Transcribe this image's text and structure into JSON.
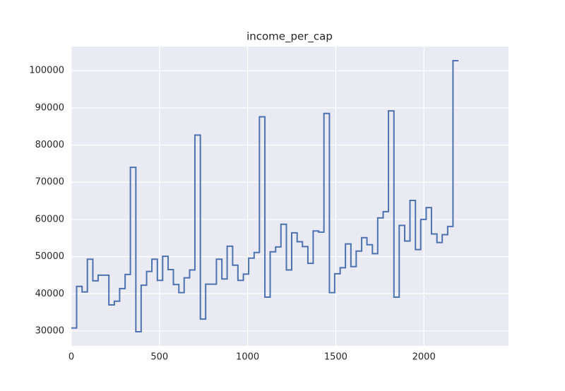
{
  "chart_data": {
    "type": "step",
    "step": "post",
    "title": "income_per_cap",
    "x": [
      0,
      30,
      61,
      91,
      122,
      152,
      183,
      213,
      244,
      274,
      305,
      335,
      366,
      396,
      427,
      457,
      488,
      518,
      549,
      579,
      610,
      640,
      671,
      701,
      732,
      762,
      793,
      823,
      854,
      884,
      915,
      945,
      976,
      1006,
      1037,
      1067,
      1098,
      1128,
      1159,
      1189,
      1220,
      1250,
      1281,
      1311,
      1342,
      1372,
      1403,
      1433,
      1464,
      1494,
      1525,
      1555,
      1586,
      1616,
      1647,
      1677,
      1708,
      1738,
      1769,
      1799,
      1830,
      1860,
      1891,
      1921,
      1952,
      1982,
      2013,
      2043,
      2074,
      2104,
      2135,
      2165,
      2196
    ],
    "series": [
      {
        "color": "#4c72b0",
        "values": [
          30800,
          42000,
          40500,
          49300,
          43500,
          45000,
          45000,
          37000,
          38000,
          41400,
          45200,
          74000,
          29800,
          42300,
          46000,
          49300,
          43600,
          50100,
          46500,
          42500,
          40300,
          44300,
          46400,
          82700,
          33200,
          42600,
          42600,
          49300,
          44000,
          52800,
          47700,
          43600,
          45300,
          49600,
          51100,
          87600,
          39100,
          51300,
          52600,
          58700,
          46400,
          56400,
          54000,
          52700,
          48200,
          56900,
          56600,
          88500,
          40300,
          45400,
          47000,
          53400,
          47300,
          51500,
          55100,
          53200,
          50800,
          60400,
          62100,
          89200,
          39100,
          58400,
          54200,
          65100,
          51900,
          60000,
          63200,
          56100,
          53800,
          55900,
          58100,
          102700,
          102700
        ]
      }
    ],
    "xlim": [
      0,
      2480
    ],
    "xticks": [
      0,
      500,
      1000,
      1500,
      2000
    ],
    "ylim": [
      26000,
      106500
    ],
    "yticks": [
      30000,
      40000,
      50000,
      60000,
      70000,
      80000,
      90000,
      100000
    ],
    "grid": true
  }
}
